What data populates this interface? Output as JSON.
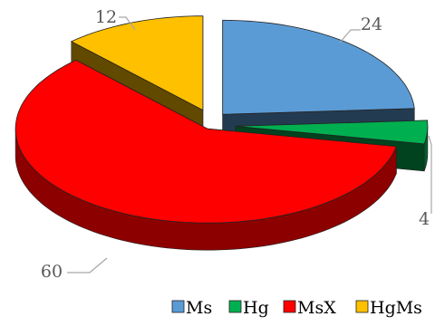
{
  "chart_data": {
    "type": "pie",
    "style": "3d-exploded",
    "title": "",
    "legend_position": "bottom",
    "slices": [
      {
        "name": "Ms",
        "value": 24,
        "color": "#5B9BD5"
      },
      {
        "name": "Hg",
        "value": 4,
        "color": "#00B050"
      },
      {
        "name": "MsX",
        "value": 60,
        "color": "#FF0000"
      },
      {
        "name": "HgMs",
        "value": 12,
        "color": "#FFC000"
      }
    ]
  }
}
